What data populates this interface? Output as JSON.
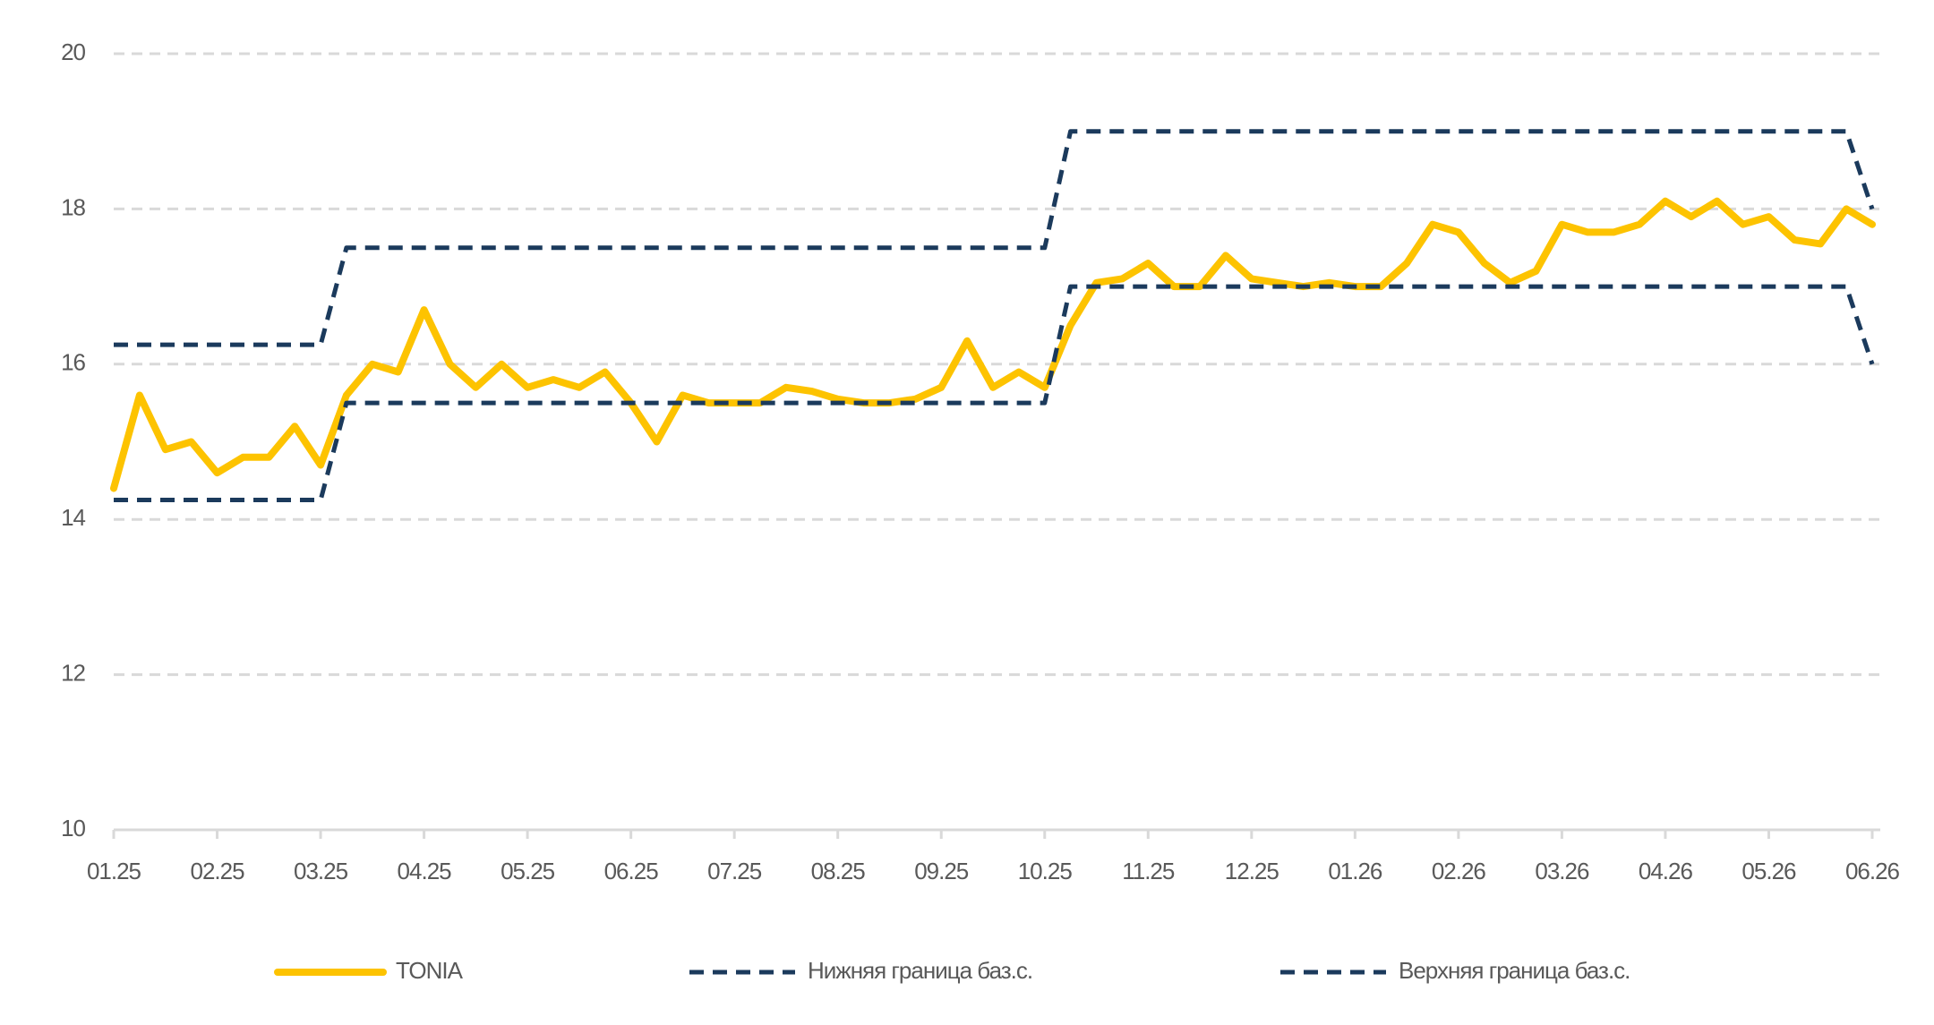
{
  "chart_data": {
    "type": "line",
    "categories": [
      "01.25",
      null,
      null,
      null,
      "02.25",
      null,
      null,
      null,
      "03.25",
      null,
      null,
      null,
      "04.25",
      null,
      null,
      null,
      "05.25",
      null,
      null,
      null,
      "06.25",
      null,
      null,
      null,
      "07.25",
      null,
      null,
      null,
      "08.25",
      null,
      null,
      null,
      "09.25",
      null,
      null,
      null,
      "10.25",
      null,
      null,
      null,
      "11.25",
      null,
      null,
      null,
      "12.25",
      null,
      null,
      null,
      "01.26",
      null,
      null,
      null,
      "02.26",
      null,
      null,
      null,
      "03.26",
      null,
      null,
      null,
      "04.26",
      null,
      null,
      null,
      "05.26",
      null,
      null,
      null,
      "06.26"
    ],
    "series": [
      {
        "name": "TONIA",
        "color": "#fdc300",
        "dashed": false,
        "values": [
          14.4,
          15.6,
          14.9,
          15.0,
          14.6,
          14.8,
          14.8,
          15.2,
          14.7,
          15.6,
          16.0,
          15.9,
          16.7,
          16.0,
          15.7,
          16.0,
          15.7,
          15.8,
          15.7,
          15.9,
          15.5,
          15.0,
          15.6,
          15.5,
          15.5,
          15.5,
          15.7,
          15.65,
          15.55,
          15.5,
          15.5,
          15.55,
          15.7,
          16.3,
          15.7,
          15.9,
          15.7,
          16.5,
          17.05,
          17.1,
          17.3,
          17.0,
          17.0,
          17.4,
          17.1,
          17.05,
          17.0,
          17.05,
          17.0,
          17.0,
          17.3,
          17.8,
          17.7,
          17.3,
          17.05,
          17.2,
          17.8,
          17.7,
          17.7,
          17.8,
          18.1,
          17.9,
          18.1,
          17.8,
          17.9,
          17.6,
          17.55,
          18.0,
          17.8
        ]
      },
      {
        "name": "Нижняя граница баз.с.",
        "color": "#1b3a5c",
        "dashed": true,
        "values": [
          14.25,
          14.25,
          14.25,
          14.25,
          14.25,
          14.25,
          14.25,
          14.25,
          14.25,
          15.5,
          15.5,
          15.5,
          15.5,
          15.5,
          15.5,
          15.5,
          15.5,
          15.5,
          15.5,
          15.5,
          15.5,
          15.5,
          15.5,
          15.5,
          15.5,
          15.5,
          15.5,
          15.5,
          15.5,
          15.5,
          15.5,
          15.5,
          15.5,
          15.5,
          15.5,
          15.5,
          15.5,
          17,
          17,
          17,
          17,
          17,
          17,
          17,
          17,
          17,
          17,
          17,
          17,
          17,
          17,
          17,
          17,
          17,
          17,
          17,
          17,
          17,
          17,
          17,
          17,
          17,
          17,
          17,
          17,
          17,
          17,
          17,
          16
        ]
      },
      {
        "name": "Верхняя граница баз.с.",
        "color": "#1b3a5c",
        "dashed": true,
        "values": [
          16.25,
          16.25,
          16.25,
          16.25,
          16.25,
          16.25,
          16.25,
          16.25,
          16.25,
          17.5,
          17.5,
          17.5,
          17.5,
          17.5,
          17.5,
          17.5,
          17.5,
          17.5,
          17.5,
          17.5,
          17.5,
          17.5,
          17.5,
          17.5,
          17.5,
          17.5,
          17.5,
          17.5,
          17.5,
          17.5,
          17.5,
          17.5,
          17.5,
          17.5,
          17.5,
          17.5,
          17.5,
          19,
          19,
          19,
          19,
          19,
          19,
          19,
          19,
          19,
          19,
          19,
          19,
          19,
          19,
          19,
          19,
          19,
          19,
          19,
          19,
          19,
          19,
          19,
          19,
          19,
          19,
          19,
          19,
          19,
          19,
          19,
          18
        ]
      }
    ],
    "ylim": [
      10,
      20
    ],
    "yticks": [
      10,
      12,
      14,
      16,
      18,
      20
    ],
    "grid": true
  }
}
